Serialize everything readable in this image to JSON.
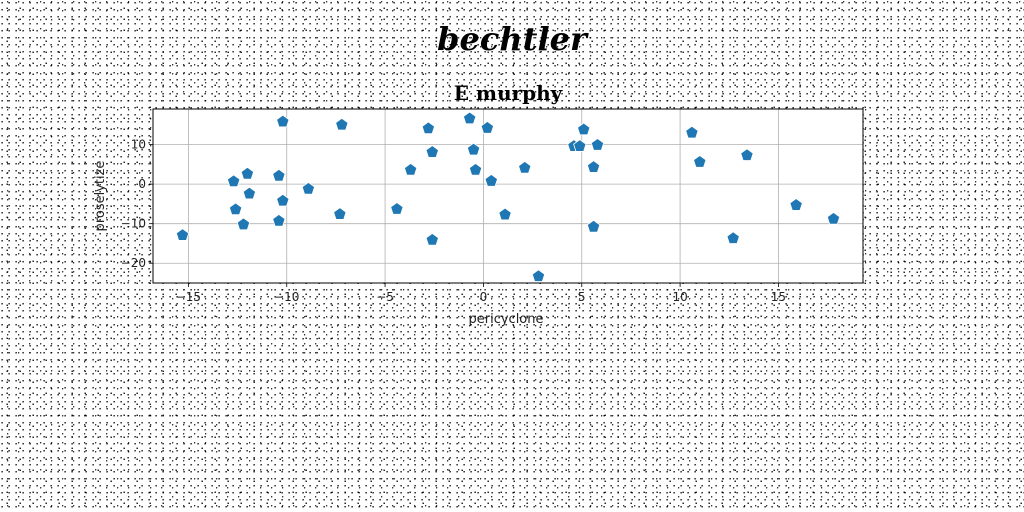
{
  "brand": "bechtler",
  "chart_data": {
    "type": "scatter",
    "title": "E murphy",
    "xlabel": "pericyclone",
    "ylabel": "proselytize",
    "xlim": [
      -16.8,
      19.3
    ],
    "ylim": [
      -25,
      19
    ],
    "xticks": [
      -15,
      -10,
      -5,
      0,
      5,
      10,
      15
    ],
    "yticks": [
      -20,
      -10,
      0,
      10
    ],
    "grid": true,
    "marker": "pentagon",
    "color": "#1f77b4",
    "points": [
      {
        "x": -15.3,
        "y": -12.9
      },
      {
        "x": -12.7,
        "y": 0.7
      },
      {
        "x": -12.6,
        "y": -6.4
      },
      {
        "x": -12.2,
        "y": -10.2
      },
      {
        "x": -12.0,
        "y": 2.6
      },
      {
        "x": -11.9,
        "y": -2.4
      },
      {
        "x": -10.4,
        "y": 2.1
      },
      {
        "x": -10.4,
        "y": -9.3
      },
      {
        "x": -10.2,
        "y": 15.8
      },
      {
        "x": -10.2,
        "y": -4.2
      },
      {
        "x": -8.9,
        "y": -1.2
      },
      {
        "x": -7.3,
        "y": -7.6
      },
      {
        "x": -7.2,
        "y": 15.0
      },
      {
        "x": -4.4,
        "y": -6.3
      },
      {
        "x": -3.7,
        "y": 3.6
      },
      {
        "x": -2.8,
        "y": 14.1
      },
      {
        "x": -2.6,
        "y": 8.1
      },
      {
        "x": -2.6,
        "y": -14.1
      },
      {
        "x": -0.7,
        "y": 16.6
      },
      {
        "x": -0.5,
        "y": 8.7
      },
      {
        "x": -0.4,
        "y": 3.6
      },
      {
        "x": 0.2,
        "y": 14.2
      },
      {
        "x": 0.4,
        "y": 0.8
      },
      {
        "x": 1.1,
        "y": -7.7
      },
      {
        "x": 2.1,
        "y": 4.1
      },
      {
        "x": 2.8,
        "y": -23.3
      },
      {
        "x": 4.6,
        "y": 9.6
      },
      {
        "x": 4.9,
        "y": 9.6
      },
      {
        "x": 5.1,
        "y": 13.8
      },
      {
        "x": 5.6,
        "y": 4.3
      },
      {
        "x": 5.6,
        "y": -10.8
      },
      {
        "x": 5.8,
        "y": 9.9
      },
      {
        "x": 10.6,
        "y": 13.0
      },
      {
        "x": 11.0,
        "y": 5.6
      },
      {
        "x": 12.7,
        "y": -13.7
      },
      {
        "x": 13.4,
        "y": 7.3
      },
      {
        "x": 15.9,
        "y": -5.3
      },
      {
        "x": 17.8,
        "y": -8.8
      }
    ]
  }
}
